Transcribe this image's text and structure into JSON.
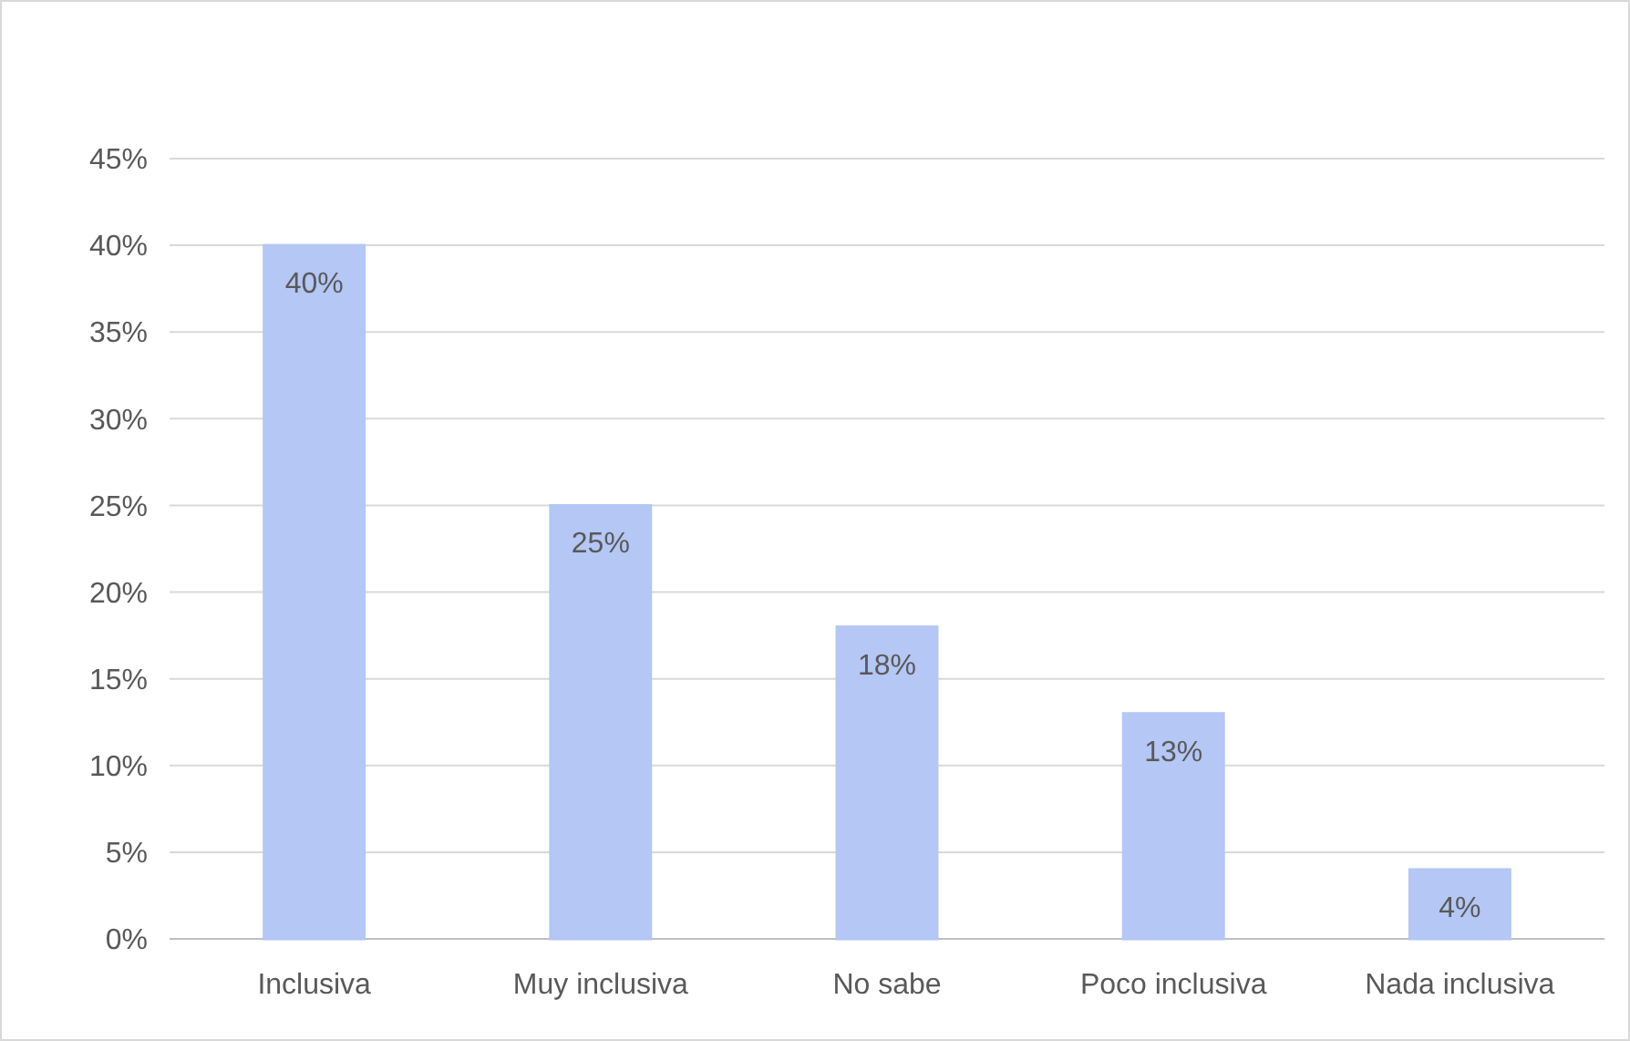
{
  "chart_data": {
    "type": "bar",
    "categories": [
      "Inclusiva",
      "Muy inclusiva",
      "No sabe",
      "Poco inclusiva",
      "Nada inclusiva"
    ],
    "values": [
      40,
      25,
      18,
      13,
      4
    ],
    "value_labels": [
      "40%",
      "25%",
      "18%",
      "13%",
      "4%"
    ],
    "color": "#b4c7f5",
    "ylim": [
      0,
      45
    ],
    "yticks": [
      {
        "value": 0,
        "label": "0%"
      },
      {
        "value": 5,
        "label": "5%"
      },
      {
        "value": 10,
        "label": "10%"
      },
      {
        "value": 15,
        "label": "15%"
      },
      {
        "value": 20,
        "label": "20%"
      },
      {
        "value": 25,
        "label": "25%"
      },
      {
        "value": 30,
        "label": "30%"
      },
      {
        "value": 35,
        "label": "35%"
      },
      {
        "value": 40,
        "label": "40%"
      },
      {
        "value": 45,
        "label": "45%"
      }
    ],
    "grid": "y"
  }
}
